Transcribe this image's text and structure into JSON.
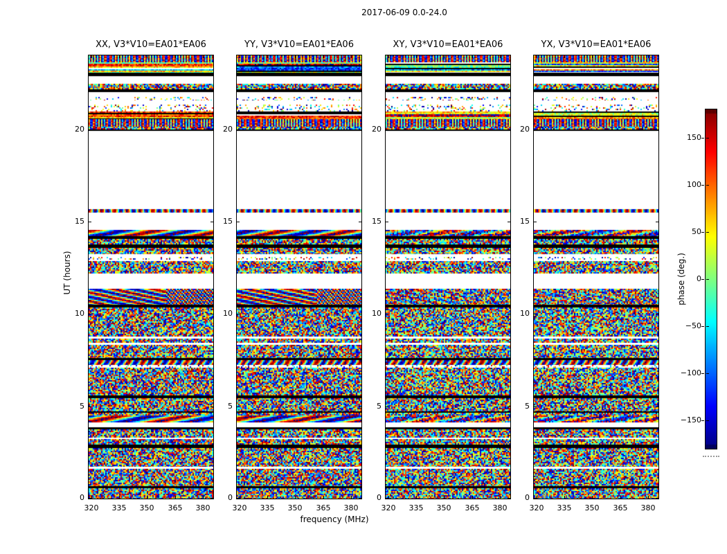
{
  "figure": {
    "title": "2017-06-09 0.0-24.0"
  },
  "axes": {
    "xlabel": "frequency (MHz)",
    "ylabel": "UT (hours)",
    "xticks": [
      320,
      335,
      350,
      365,
      380
    ],
    "xtick_labels": [
      "320",
      "335",
      "350",
      "365",
      "380"
    ],
    "yticks": [
      0,
      5,
      10,
      15,
      20
    ],
    "ytick_labels": [
      "0",
      "5",
      "10",
      "15",
      "20"
    ],
    "xlim": [
      318.6,
      385.5
    ],
    "ylim": [
      0,
      24
    ]
  },
  "panels": [
    {
      "corr": "XX",
      "title": "XX, V3*V10=EA01*EA06",
      "seed": 17,
      "coherence": 1
    },
    {
      "corr": "YY",
      "title": "YY, V3*V10=EA01*EA06",
      "seed": 53,
      "coherence": 1
    },
    {
      "corr": "XY",
      "title": "XY, V3*V10=EA01*EA06",
      "seed": 91,
      "coherence": 0.45
    },
    {
      "corr": "YX",
      "title": "YX, V3*V10=EA01*EA06",
      "seed": 137,
      "coherence": 0.45
    }
  ],
  "colorbar": {
    "label": "phase (deg.)",
    "tick_values": [
      150,
      100,
      50,
      0,
      -50,
      -100,
      -150
    ],
    "tick_labels": [
      "150",
      "100",
      "50",
      "0",
      "−50",
      "−100",
      "−150"
    ],
    "vmin": -180,
    "vmax": 180,
    "colormap": "jet"
  },
  "chart_data": {
    "type": "heatmap",
    "title": "2017-06-09 0.0-24.0",
    "subplot_titles": [
      "XX, V3*V10=EA01*EA06",
      "YY, V3*V10=EA01*EA06",
      "XY, V3*V10=EA01*EA06",
      "YX, V3*V10=EA01*EA06"
    ],
    "xlabel": "frequency (MHz)",
    "ylabel": "UT (hours)",
    "value_label": "phase (deg.)",
    "x_range_mhz": [
      318.6,
      385.5
    ],
    "y_range_hours": [
      0,
      24
    ],
    "value_range_deg": [
      -180,
      180
    ],
    "colormap": "jet",
    "legend_position": "right-colorbar",
    "grid": false,
    "bands": [
      [
        23.62,
        24.0,
        "bright"
      ],
      [
        23.05,
        23.62,
        "hlines"
      ],
      [
        22.88,
        23.05,
        "black"
      ],
      [
        22.45,
        22.88,
        "white"
      ],
      [
        22.15,
        22.45,
        "speckle"
      ],
      [
        22.0,
        22.15,
        "black"
      ],
      [
        21.75,
        22.0,
        "white"
      ],
      [
        21.55,
        21.75,
        "sparse"
      ],
      [
        21.35,
        21.55,
        "white"
      ],
      [
        20.95,
        21.35,
        "sparse"
      ],
      [
        20.55,
        20.95,
        "hlines"
      ],
      [
        20.15,
        20.55,
        "bright"
      ],
      [
        20.0,
        20.15,
        "speckle"
      ],
      [
        19.93,
        20.0,
        "black"
      ],
      [
        15.68,
        19.93,
        "white"
      ],
      [
        15.5,
        15.68,
        "thinbright"
      ],
      [
        14.55,
        15.5,
        "white"
      ],
      [
        14.2,
        14.55,
        "wave"
      ],
      [
        14.08,
        14.2,
        "black"
      ],
      [
        13.78,
        14.08,
        "speckle"
      ],
      [
        13.58,
        13.78,
        "black"
      ],
      [
        13.25,
        13.58,
        "speckle"
      ],
      [
        13.1,
        13.25,
        "white"
      ],
      [
        12.93,
        13.1,
        "sparse"
      ],
      [
        12.85,
        12.93,
        "white"
      ],
      [
        12.2,
        12.85,
        "speckle"
      ],
      [
        11.38,
        12.2,
        "white"
      ],
      [
        10.5,
        11.38,
        "diagonal"
      ],
      [
        10.35,
        10.5,
        "black"
      ],
      [
        8.78,
        10.35,
        "speckle"
      ],
      [
        8.68,
        8.78,
        "white"
      ],
      [
        8.42,
        8.68,
        "speckle"
      ],
      [
        8.32,
        8.42,
        "white"
      ],
      [
        7.62,
        8.32,
        "speckle"
      ],
      [
        7.5,
        7.62,
        "black"
      ],
      [
        7.25,
        7.5,
        "wavethin"
      ],
      [
        7.1,
        7.25,
        "sparse"
      ],
      [
        5.57,
        7.1,
        "speckle"
      ],
      [
        5.45,
        5.57,
        "black"
      ],
      [
        4.72,
        5.45,
        "speckle"
      ],
      [
        4.65,
        4.72,
        "black"
      ],
      [
        4.5,
        4.65,
        "speckle"
      ],
      [
        4.12,
        4.5,
        "wave"
      ],
      [
        3.88,
        4.12,
        "white"
      ],
      [
        3.76,
        3.88,
        "black"
      ],
      [
        3.3,
        3.76,
        "speckle"
      ],
      [
        3.22,
        3.3,
        "white"
      ],
      [
        2.92,
        3.22,
        "speckle"
      ],
      [
        2.72,
        2.92,
        "black"
      ],
      [
        1.72,
        2.72,
        "speckle"
      ],
      [
        1.62,
        1.72,
        "white"
      ],
      [
        0.68,
        1.62,
        "speckle"
      ],
      [
        0.55,
        0.68,
        "black"
      ],
      [
        0.0,
        0.55,
        "speckle"
      ]
    ]
  }
}
